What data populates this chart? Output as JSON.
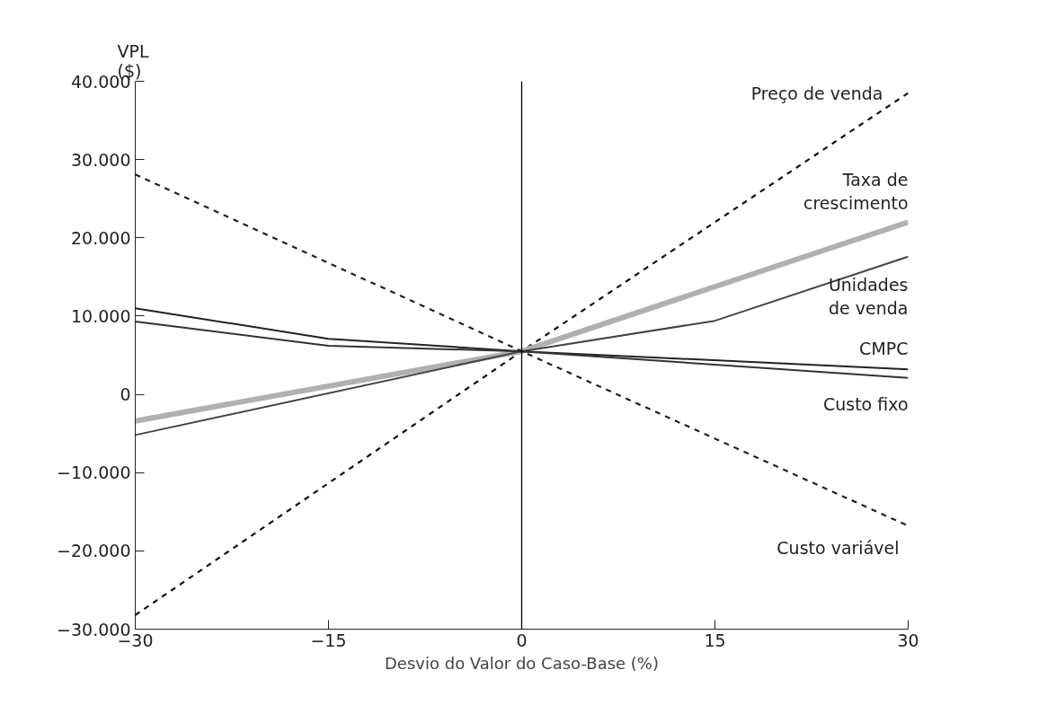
{
  "chart_data": {
    "type": "line",
    "xlabel": "Desvio do Valor do Caso-Base (%)",
    "ylabel": "VPL\n($)",
    "xlim": [
      -30,
      30
    ],
    "xticks": [
      {
        "value": -30,
        "label": "−30"
      },
      {
        "value": -15,
        "label": "−15"
      },
      0,
      15,
      30
    ],
    "ylim": [
      -30000,
      40000
    ],
    "yticks": [
      {
        "value": -30000,
        "label": "−30.000"
      },
      {
        "value": -20000,
        "label": "−20.000"
      },
      {
        "value": -10000,
        "label": "−10.000"
      },
      0,
      {
        "value": 10000,
        "label": "10.000"
      },
      {
        "value": 20000,
        "label": "20.000"
      },
      {
        "value": 30000,
        "label": "30.000"
      },
      {
        "value": 40000,
        "label": "40.000"
      }
    ],
    "grid": false,
    "marker": "none",
    "ref_lines": [
      {
        "axis": "x",
        "value": 0,
        "color": "#000000"
      }
    ],
    "series": [
      {
        "name": "Preço de venda",
        "color": "#111111",
        "line_style": "dashed",
        "x": [
          -30,
          0,
          30
        ],
        "values": [
          -28200,
          5500,
          38500
        ]
      },
      {
        "name": "Taxa de\ncrescimento",
        "color": "#b0b0b0",
        "line_style": "solid",
        "x": [
          -30,
          0,
          30
        ],
        "values": [
          -3400,
          5500,
          22000
        ]
      },
      {
        "name": "Unidades\nde venda",
        "color": "#444444",
        "line_style": "solid",
        "x": [
          -30,
          0,
          15,
          30
        ],
        "values": [
          -5200,
          5500,
          9400,
          17600
        ]
      },
      {
        "name": "CMPC",
        "color": "#222222",
        "line_style": "solid",
        "x": [
          -30,
          -15,
          0,
          30
        ],
        "values": [
          11000,
          7100,
          5500,
          3200
        ]
      },
      {
        "name": "Custo fixo",
        "color": "#333333",
        "line_style": "solid",
        "x": [
          -30,
          -15,
          0,
          30
        ],
        "values": [
          9300,
          6200,
          5500,
          2100
        ]
      },
      {
        "name": "Custo variável",
        "color": "#222222",
        "line_style": "dashed",
        "x": [
          -30,
          0,
          30
        ],
        "values": [
          28100,
          5500,
          -16800
        ]
      }
    ]
  }
}
